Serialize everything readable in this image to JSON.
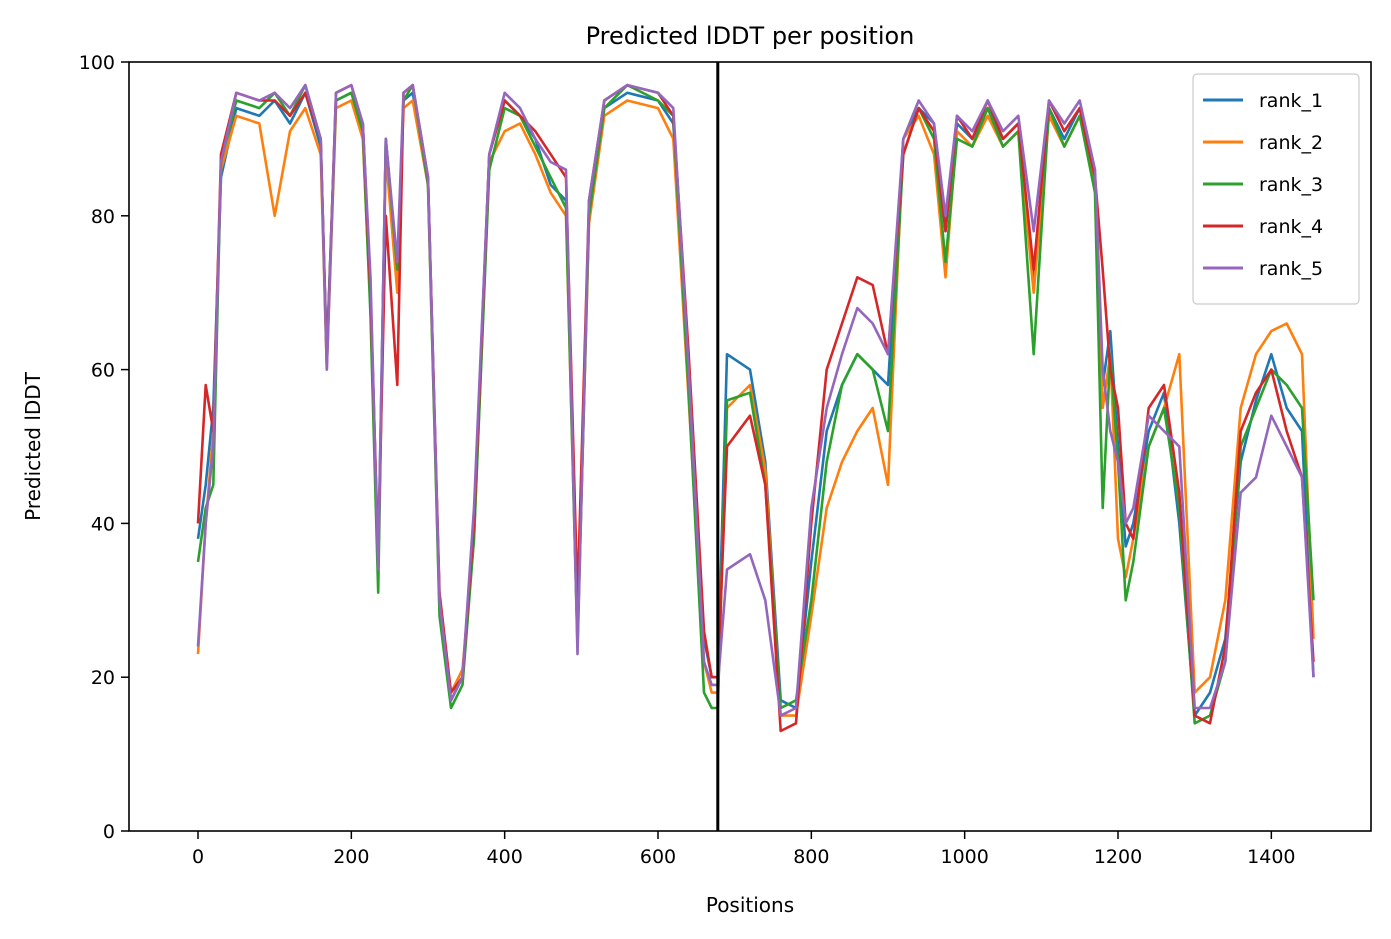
{
  "chart_data": {
    "type": "line",
    "title": "Predicted lDDT per position",
    "xlabel": "Positions",
    "ylabel": "Predicted lDDT",
    "xlim": [
      -90,
      1530
    ],
    "ylim": [
      0,
      100
    ],
    "xticks": [
      0,
      200,
      400,
      600,
      800,
      1000,
      1200,
      1400
    ],
    "yticks": [
      0,
      20,
      40,
      60,
      80,
      100
    ],
    "grid": false,
    "legend_position": "top-right",
    "vline_x": 678,
    "series": [
      {
        "name": "rank_1",
        "color": "#1f77b4",
        "x": [
          0,
          10,
          20,
          30,
          50,
          80,
          100,
          120,
          140,
          160,
          168,
          180,
          200,
          215,
          225,
          235,
          245,
          260,
          268,
          280,
          300,
          315,
          330,
          345,
          360,
          380,
          400,
          420,
          440,
          460,
          480,
          495,
          510,
          530,
          560,
          600,
          620,
          640,
          660,
          670,
          678,
          690,
          720,
          740,
          760,
          780,
          800,
          820,
          840,
          860,
          880,
          900,
          920,
          940,
          960,
          975,
          990,
          1010,
          1030,
          1050,
          1070,
          1090,
          1110,
          1130,
          1150,
          1170,
          1180,
          1190,
          1200,
          1210,
          1220,
          1240,
          1260,
          1280,
          1300,
          1320,
          1340,
          1360,
          1380,
          1400,
          1420,
          1440,
          1455
        ],
        "y": [
          38,
          45,
          55,
          85,
          94,
          93,
          95,
          92,
          96,
          89,
          62,
          95,
          96,
          92,
          70,
          35,
          90,
          72,
          95,
          96,
          85,
          30,
          17,
          20,
          40,
          88,
          95,
          93,
          90,
          84,
          82,
          26,
          80,
          94,
          96,
          95,
          92,
          60,
          25,
          20,
          20,
          62,
          60,
          48,
          17,
          16,
          35,
          52,
          58,
          62,
          60,
          58,
          90,
          94,
          92,
          78,
          92,
          90,
          94,
          90,
          92,
          72,
          94,
          90,
          94,
          85,
          58,
          65,
          50,
          37,
          40,
          52,
          57,
          40,
          15,
          18,
          25,
          48,
          56,
          62,
          55,
          52,
          20
        ]
      },
      {
        "name": "rank_2",
        "color": "#ff7f0e",
        "x": [
          0,
          10,
          20,
          30,
          50,
          80,
          100,
          120,
          140,
          160,
          168,
          180,
          200,
          215,
          225,
          235,
          245,
          260,
          268,
          280,
          300,
          315,
          330,
          345,
          360,
          380,
          400,
          420,
          440,
          460,
          480,
          495,
          510,
          530,
          560,
          600,
          620,
          640,
          660,
          670,
          678,
          690,
          720,
          740,
          760,
          780,
          800,
          820,
          840,
          860,
          880,
          900,
          920,
          940,
          960,
          975,
          990,
          1010,
          1030,
          1050,
          1070,
          1090,
          1110,
          1130,
          1150,
          1170,
          1180,
          1190,
          1200,
          1210,
          1220,
          1240,
          1260,
          1280,
          1300,
          1320,
          1340,
          1360,
          1380,
          1400,
          1420,
          1440,
          1455
        ],
        "y": [
          23,
          40,
          52,
          86,
          93,
          92,
          80,
          91,
          94,
          88,
          60,
          94,
          95,
          90,
          68,
          34,
          88,
          70,
          94,
          95,
          84,
          29,
          18,
          21,
          38,
          87,
          91,
          92,
          88,
          83,
          80,
          25,
          79,
          93,
          95,
          94,
          90,
          56,
          22,
          18,
          18,
          55,
          58,
          47,
          15,
          15,
          28,
          42,
          48,
          52,
          55,
          45,
          90,
          93,
          88,
          72,
          91,
          89,
          93,
          89,
          91,
          70,
          93,
          89,
          93,
          84,
          55,
          62,
          38,
          33,
          38,
          50,
          55,
          62,
          18,
          20,
          30,
          55,
          62,
          65,
          66,
          62,
          25
        ]
      },
      {
        "name": "rank_3",
        "color": "#2ca02c",
        "x": [
          0,
          10,
          20,
          30,
          50,
          80,
          100,
          120,
          140,
          160,
          168,
          180,
          200,
          215,
          225,
          235,
          245,
          260,
          268,
          280,
          300,
          315,
          330,
          345,
          360,
          380,
          400,
          420,
          440,
          460,
          480,
          495,
          510,
          530,
          560,
          600,
          620,
          640,
          660,
          670,
          678,
          690,
          720,
          740,
          760,
          780,
          800,
          820,
          840,
          860,
          880,
          900,
          920,
          940,
          960,
          975,
          990,
          1010,
          1030,
          1050,
          1070,
          1090,
          1110,
          1130,
          1150,
          1170,
          1180,
          1190,
          1200,
          1210,
          1220,
          1240,
          1260,
          1280,
          1300,
          1320,
          1340,
          1360,
          1380,
          1400,
          1420,
          1440,
          1455
        ],
        "y": [
          35,
          42,
          45,
          87,
          95,
          94,
          96,
          93,
          97,
          90,
          61,
          95,
          96,
          91,
          67,
          31,
          90,
          73,
          95,
          97,
          84,
          28,
          16,
          19,
          38,
          86,
          94,
          93,
          89,
          85,
          81,
          24,
          80,
          94,
          97,
          95,
          93,
          57,
          18,
          16,
          16,
          56,
          57,
          45,
          16,
          17,
          30,
          48,
          58,
          62,
          60,
          52,
          88,
          94,
          90,
          74,
          90,
          89,
          94,
          89,
          91,
          62,
          94,
          89,
          93,
          83,
          42,
          62,
          48,
          30,
          35,
          50,
          55,
          42,
          14,
          15,
          22,
          50,
          55,
          60,
          58,
          55,
          30
        ]
      },
      {
        "name": "rank_4",
        "color": "#d62728",
        "x": [
          0,
          10,
          20,
          30,
          50,
          80,
          100,
          120,
          140,
          160,
          168,
          180,
          200,
          215,
          225,
          235,
          245,
          260,
          268,
          280,
          300,
          315,
          330,
          345,
          360,
          380,
          400,
          420,
          440,
          460,
          480,
          495,
          510,
          530,
          560,
          600,
          620,
          640,
          660,
          670,
          678,
          690,
          720,
          740,
          760,
          780,
          800,
          820,
          840,
          860,
          880,
          900,
          920,
          940,
          960,
          975,
          990,
          1010,
          1030,
          1050,
          1070,
          1090,
          1110,
          1130,
          1150,
          1170,
          1180,
          1190,
          1200,
          1210,
          1220,
          1240,
          1260,
          1280,
          1300,
          1320,
          1340,
          1360,
          1380,
          1400,
          1420,
          1440,
          1455
        ],
        "y": [
          40,
          58,
          52,
          88,
          96,
          95,
          95,
          93,
          96,
          90,
          61,
          96,
          97,
          92,
          70,
          36,
          80,
          58,
          96,
          97,
          85,
          31,
          18,
          20,
          40,
          88,
          95,
          93,
          91,
          88,
          85,
          30,
          82,
          95,
          97,
          96,
          93,
          62,
          26,
          20,
          20,
          50,
          54,
          45,
          13,
          14,
          40,
          60,
          66,
          72,
          71,
          62,
          88,
          94,
          91,
          78,
          93,
          90,
          95,
          90,
          92,
          73,
          95,
          91,
          94,
          85,
          73,
          60,
          55,
          40,
          38,
          55,
          58,
          44,
          15,
          14,
          24,
          52,
          57,
          60,
          52,
          46,
          22
        ]
      },
      {
        "name": "rank_5",
        "color": "#9467bd",
        "x": [
          0,
          10,
          20,
          30,
          50,
          80,
          100,
          120,
          140,
          160,
          168,
          180,
          200,
          215,
          225,
          235,
          245,
          260,
          268,
          280,
          300,
          315,
          330,
          345,
          360,
          380,
          400,
          420,
          440,
          460,
          480,
          495,
          510,
          530,
          560,
          600,
          620,
          640,
          660,
          670,
          678,
          690,
          720,
          740,
          760,
          780,
          800,
          820,
          840,
          860,
          880,
          900,
          920,
          940,
          960,
          975,
          990,
          1010,
          1030,
          1050,
          1070,
          1090,
          1110,
          1130,
          1150,
          1170,
          1180,
          1190,
          1200,
          1210,
          1220,
          1240,
          1260,
          1280,
          1300,
          1320,
          1340,
          1360,
          1380,
          1400,
          1420,
          1440,
          1455
        ],
        "y": [
          24,
          40,
          50,
          87,
          96,
          95,
          96,
          94,
          97,
          90,
          60,
          96,
          97,
          92,
          72,
          34,
          90,
          74,
          96,
          97,
          85,
          30,
          17,
          20,
          42,
          88,
          96,
          94,
          90,
          87,
          86,
          23,
          82,
          95,
          97,
          96,
          94,
          60,
          22,
          19,
          19,
          34,
          36,
          30,
          15,
          16,
          42,
          55,
          62,
          68,
          66,
          62,
          90,
          95,
          92,
          80,
          93,
          91,
          95,
          91,
          93,
          78,
          95,
          92,
          95,
          86,
          60,
          52,
          48,
          40,
          42,
          54,
          52,
          50,
          16,
          16,
          22,
          44,
          46,
          54,
          50,
          46,
          20
        ]
      }
    ]
  }
}
